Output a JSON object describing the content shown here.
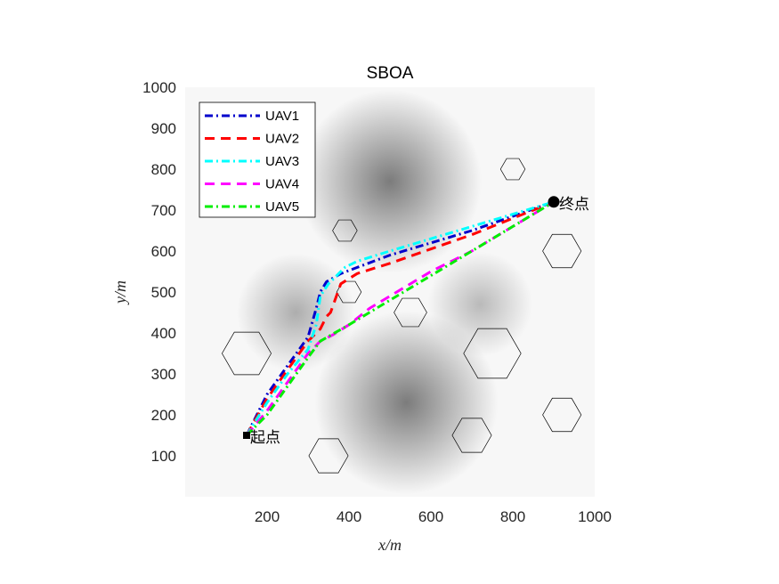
{
  "chart_data": {
    "type": "line",
    "title": "SBOA",
    "xlabel": "x/m",
    "ylabel": "y/m",
    "xlim": [
      0,
      1000
    ],
    "ylim": [
      0,
      1000
    ],
    "xticks": [
      200,
      400,
      600,
      800,
      1000
    ],
    "yticks": [
      100,
      200,
      300,
      400,
      500,
      600,
      700,
      800,
      900,
      1000
    ],
    "legend_position": "top-left",
    "start": {
      "x": 150,
      "y": 150,
      "label": "起点"
    },
    "end": {
      "x": 900,
      "y": 720,
      "label": "终点"
    },
    "threat_peaks": [
      {
        "x": 500,
        "y": 770,
        "r": 140,
        "strength": 0.5
      },
      {
        "x": 540,
        "y": 230,
        "r": 140,
        "strength": 0.5
      },
      {
        "x": 270,
        "y": 450,
        "r": 90,
        "strength": 0.3
      },
      {
        "x": 720,
        "y": 470,
        "r": 80,
        "strength": 0.25
      }
    ],
    "obstacles": [
      {
        "x": 800,
        "y": 800,
        "r": 30
      },
      {
        "x": 390,
        "y": 650,
        "r": 30
      },
      {
        "x": 920,
        "y": 600,
        "r": 47
      },
      {
        "x": 400,
        "y": 500,
        "r": 30
      },
      {
        "x": 550,
        "y": 450,
        "r": 40
      },
      {
        "x": 150,
        "y": 350,
        "r": 60
      },
      {
        "x": 750,
        "y": 350,
        "r": 70
      },
      {
        "x": 920,
        "y": 200,
        "r": 47
      },
      {
        "x": 700,
        "y": 150,
        "r": 48
      },
      {
        "x": 350,
        "y": 100,
        "r": 48
      }
    ],
    "series": [
      {
        "name": "UAV1",
        "color": "#0000cc",
        "dash": "dashdot",
        "x": [
          150,
          200,
          250,
          300,
          320,
          330,
          345,
          380,
          420,
          500,
          600,
          700,
          800,
          900
        ],
        "y": [
          150,
          250,
          320,
          390,
          460,
          500,
          525,
          545,
          560,
          590,
          620,
          650,
          685,
          720
        ]
      },
      {
        "name": "UAV2",
        "color": "#ff0000",
        "dash": "dashed",
        "x": [
          150,
          200,
          250,
          300,
          330,
          345,
          355,
          380,
          420,
          500,
          600,
          700,
          800,
          900
        ],
        "y": [
          150,
          240,
          310,
          380,
          410,
          440,
          450,
          520,
          545,
          570,
          605,
          640,
          680,
          720
        ]
      },
      {
        "name": "UAV3",
        "color": "#00ffff",
        "dash": "dashdot",
        "x": [
          150,
          200,
          250,
          300,
          320,
          330,
          350,
          390,
          420,
          500,
          600,
          700,
          800,
          900
        ],
        "y": [
          150,
          230,
          300,
          360,
          420,
          490,
          520,
          560,
          575,
          600,
          630,
          660,
          690,
          720
        ]
      },
      {
        "name": "UAV4",
        "color": "#ff00ff",
        "dash": "dashed",
        "x": [
          150,
          200,
          250,
          300,
          330,
          360,
          400,
          450,
          500,
          600,
          700,
          800,
          900
        ],
        "y": [
          150,
          210,
          280,
          350,
          380,
          395,
          420,
          460,
          490,
          550,
          600,
          660,
          720
        ]
      },
      {
        "name": "UAV5",
        "color": "#00ee00",
        "dash": "dashdot",
        "x": [
          150,
          200,
          250,
          300,
          330,
          400,
          450,
          500,
          600,
          700,
          800,
          900
        ],
        "y": [
          150,
          200,
          270,
          340,
          380,
          420,
          450,
          480,
          540,
          600,
          660,
          720
        ]
      }
    ]
  }
}
